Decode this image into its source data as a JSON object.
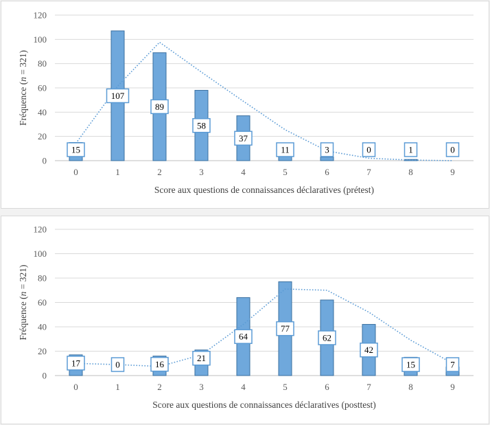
{
  "chart_data": [
    {
      "type": "bar",
      "categories": [
        "0",
        "1",
        "2",
        "3",
        "4",
        "5",
        "6",
        "7",
        "8",
        "9"
      ],
      "values": [
        15,
        107,
        89,
        58,
        37,
        11,
        3,
        0,
        1,
        0
      ],
      "data_labels": [
        "15",
        "107",
        "89",
        "58",
        "37",
        "11",
        "3",
        "0",
        "1",
        "0"
      ],
      "trend": [
        14.2,
        61.5,
        97.6,
        73.0,
        49.0,
        25.5,
        8.0,
        2.0,
        0.5,
        0.0
      ],
      "title": "",
      "xlabel": "Score aux questions de connaissances déclaratives (prétest)",
      "ylabel_prefix": "Fréquence (",
      "ylabel_italic": "n",
      "ylabel_suffix": " = 321)",
      "ylim": [
        0,
        120
      ],
      "yticks": [
        "0",
        "20",
        "40",
        "60",
        "80",
        "100",
        "120"
      ],
      "grid": true,
      "bar_color": "#6fa8dc",
      "bar_edge_color": "#3a6f9f",
      "trend_color": "#5b9bd5",
      "label_border_color": "#5b9bd5"
    },
    {
      "type": "bar",
      "categories": [
        "0",
        "1",
        "2",
        "3",
        "4",
        "5",
        "6",
        "7",
        "8",
        "9"
      ],
      "values": [
        17,
        0,
        16,
        21,
        64,
        77,
        62,
        42,
        15,
        7
      ],
      "data_labels": [
        "17",
        "0",
        "16",
        "21",
        "64",
        "77",
        "62",
        "42",
        "15",
        "7"
      ],
      "trend": [
        10.0,
        9.0,
        7.5,
        17.0,
        42.0,
        71.0,
        70.0,
        52.0,
        29.0,
        10.0
      ],
      "title": "",
      "xlabel": "Score aux questions de connaissances déclaratives (posttest)",
      "ylabel_prefix": "Fréquence (",
      "ylabel_italic": "n",
      "ylabel_suffix": " = 321)",
      "ylim": [
        0,
        120
      ],
      "yticks": [
        "0",
        "20",
        "40",
        "60",
        "80",
        "100",
        "120"
      ],
      "grid": true,
      "bar_color": "#6fa8dc",
      "bar_edge_color": "#3a6f9f",
      "trend_color": "#5b9bd5",
      "label_border_color": "#5b9bd5"
    }
  ]
}
